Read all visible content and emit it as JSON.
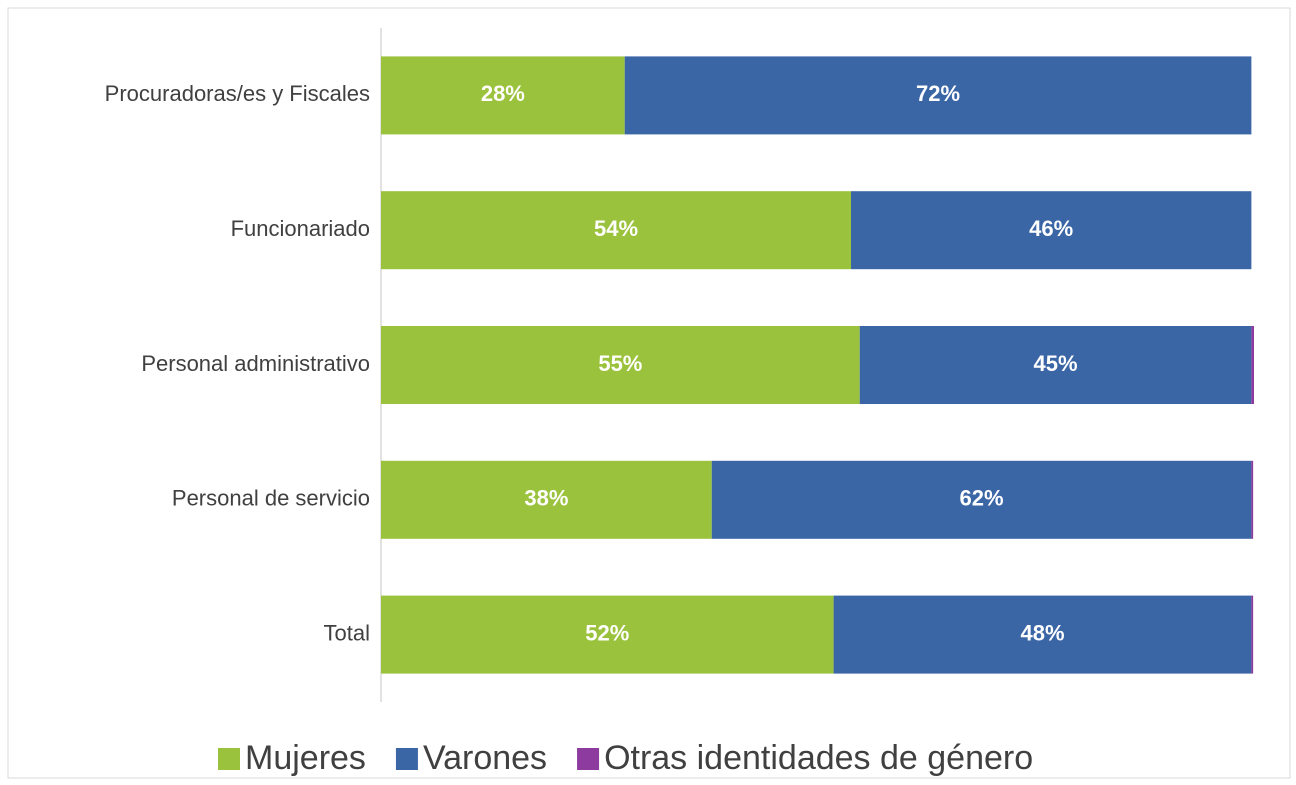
{
  "chart_data": {
    "type": "stacked-bar-horizontal",
    "categories": [
      "Procuradoras/es y Fiscales",
      "Funcionariado",
      "Personal administrativo",
      "Personal de servicio",
      "Total"
    ],
    "series": [
      {
        "name": "Mujeres",
        "color": "#9bc23c",
        "values": [
          28,
          54,
          55,
          38,
          52
        ],
        "value_labels": [
          "28%",
          "54%",
          "55%",
          "38%",
          "52%"
        ]
      },
      {
        "name": "Varones",
        "color": "#3b66a6",
        "values": [
          72,
          46,
          45,
          62,
          48
        ],
        "value_labels": [
          "72%",
          "46%",
          "45%",
          "62%",
          "48%"
        ]
      },
      {
        "name": "Otras identidades de género",
        "color": "#8e3b9f",
        "values": [
          0,
          0,
          0.3,
          0.2,
          0.2
        ]
      }
    ],
    "legend": "bottom"
  }
}
